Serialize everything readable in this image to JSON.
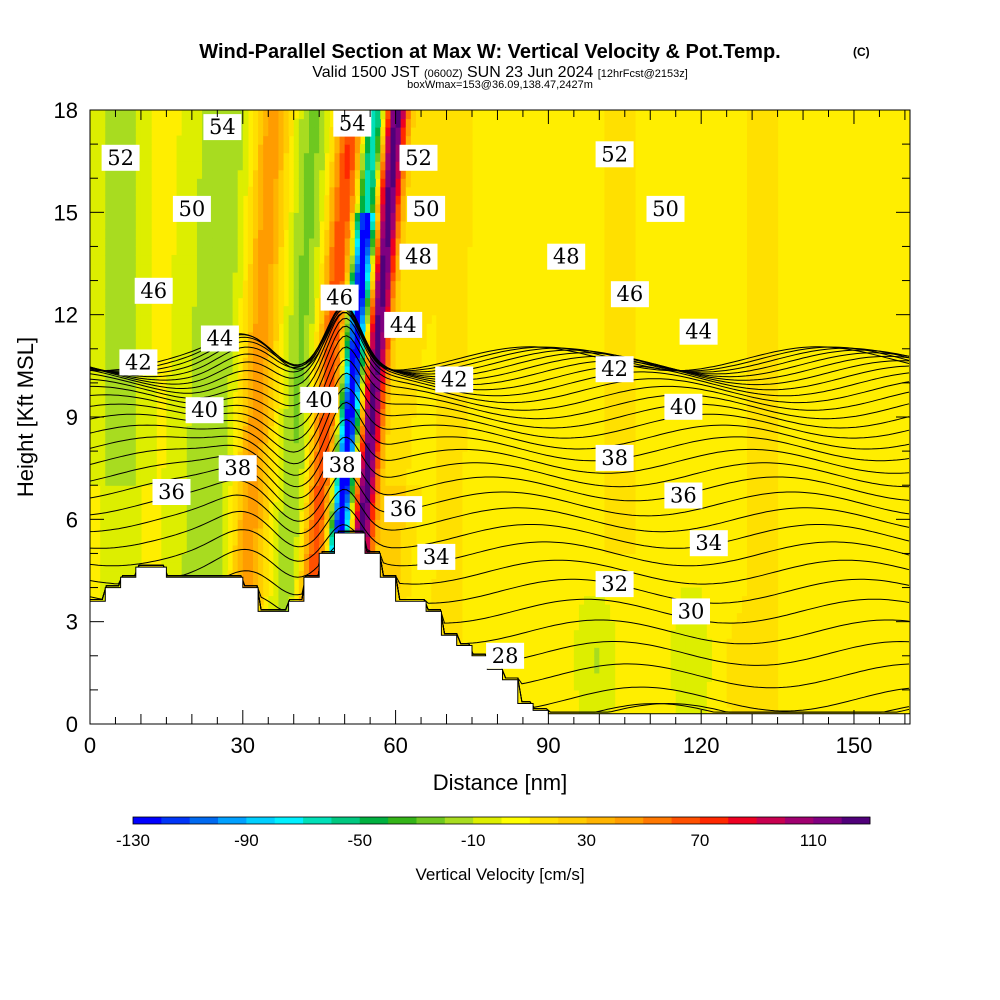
{
  "title": {
    "main": "Wind-Parallel Section at Max W: Vertical Velocity & Pot.Temp.",
    "copyright": "(C)",
    "valid_a": "Valid 1500 JST",
    "valid_z": "(0600Z)",
    "valid_b": "SUN 23 Jun 2024",
    "valid_fcst": "[12hrFcst@2153z]",
    "box": "boxWmax=153@36.09,138.47,2427m"
  },
  "chart_data": {
    "type": "heatmap",
    "title": "Wind-Parallel Section at Max W: Vertical Velocity & Pot.Temp.",
    "xlabel": "Distance [nm]",
    "ylabel": "Height [Kft MSL]",
    "xlim": [
      0,
      161
    ],
    "ylim": [
      0,
      18
    ],
    "x_ticks": [
      "0",
      "30",
      "60",
      "90",
      "120",
      "150"
    ],
    "y_ticks": [
      "0",
      "3",
      "6",
      "9",
      "12",
      "15",
      "18"
    ],
    "colorbar": {
      "label": "Vertical Velocity [cm/s]",
      "tick_labels": [
        "-130",
        "-90",
        "-50",
        "-10",
        "30",
        "70",
        "110"
      ],
      "levels": [
        -130,
        -120,
        -110,
        -100,
        -90,
        -80,
        -70,
        -60,
        -50,
        -40,
        -30,
        -20,
        -10,
        0,
        10,
        20,
        30,
        40,
        50,
        60,
        70,
        80,
        90,
        100,
        110,
        120
      ],
      "colors": [
        "#0000ff",
        "#0035f8",
        "#0069f0",
        "#00a0ff",
        "#00cfff",
        "#00f0ff",
        "#00e0b8",
        "#00c880",
        "#00b040",
        "#34b418",
        "#6ec820",
        "#a8dc20",
        "#ddee00",
        "#ffff00",
        "#ffe000",
        "#ffcc00",
        "#ffb400",
        "#ff9c00",
        "#ff7800",
        "#ff5000",
        "#ff2800",
        "#ee0022",
        "#c80050",
        "#a00070",
        "#800080",
        "#50007a"
      ]
    },
    "terrain": {
      "x": [
        0,
        3,
        6,
        9,
        12,
        15,
        18,
        21,
        24,
        27,
        30,
        33,
        36,
        39,
        42,
        45,
        48,
        51,
        54,
        57,
        60,
        63,
        66,
        69,
        72,
        75,
        78,
        81,
        84,
        87,
        90,
        95,
        100,
        110,
        120,
        130,
        140,
        150,
        161
      ],
      "height": [
        3.6,
        4.0,
        4.3,
        4.6,
        4.6,
        4.3,
        4.3,
        4.3,
        4.3,
        4.3,
        4.0,
        3.3,
        3.3,
        3.6,
        4.3,
        5.0,
        5.6,
        5.6,
        5.0,
        4.3,
        3.6,
        3.6,
        3.3,
        2.6,
        2.3,
        2.0,
        1.6,
        1.3,
        0.6,
        0.4,
        0.3,
        0.3,
        0.3,
        0.3,
        0.3,
        0.3,
        0.3,
        0.3,
        0.3
      ]
    },
    "theta_contours": [
      {
        "label": "52",
        "x": 6,
        "y": 16.6
      },
      {
        "label": "54",
        "x": 26,
        "y": 17.5
      },
      {
        "label": "54",
        "x": 51.5,
        "y": 17.6
      },
      {
        "label": "52",
        "x": 64.5,
        "y": 16.6
      },
      {
        "label": "52",
        "x": 103,
        "y": 16.7
      },
      {
        "label": "50",
        "x": 20,
        "y": 15.1
      },
      {
        "label": "50",
        "x": 66,
        "y": 15.1
      },
      {
        "label": "50",
        "x": 113,
        "y": 15.1
      },
      {
        "label": "48",
        "x": 64.5,
        "y": 13.7
      },
      {
        "label": "48",
        "x": 93.5,
        "y": 13.7
      },
      {
        "label": "46",
        "x": 12.5,
        "y": 12.7
      },
      {
        "label": "46",
        "x": 49,
        "y": 12.5
      },
      {
        "label": "46",
        "x": 106,
        "y": 12.6
      },
      {
        "label": "44",
        "x": 25.5,
        "y": 11.3
      },
      {
        "label": "44",
        "x": 61.5,
        "y": 11.7
      },
      {
        "label": "44",
        "x": 119.5,
        "y": 11.5
      },
      {
        "label": "42",
        "x": 9.5,
        "y": 10.6
      },
      {
        "label": "42",
        "x": 71.5,
        "y": 10.1
      },
      {
        "label": "42",
        "x": 103,
        "y": 10.4
      },
      {
        "label": "40",
        "x": 22.5,
        "y": 9.2
      },
      {
        "label": "40",
        "x": 45,
        "y": 9.5
      },
      {
        "label": "40",
        "x": 116.5,
        "y": 9.3
      },
      {
        "label": "38",
        "x": 29,
        "y": 7.5
      },
      {
        "label": "38",
        "x": 49.5,
        "y": 7.6
      },
      {
        "label": "38",
        "x": 103,
        "y": 7.8
      },
      {
        "label": "36",
        "x": 16,
        "y": 6.8
      },
      {
        "label": "36",
        "x": 61.5,
        "y": 6.3
      },
      {
        "label": "36",
        "x": 116.5,
        "y": 6.7
      },
      {
        "label": "34",
        "x": 68,
        "y": 4.9
      },
      {
        "label": "34",
        "x": 121.5,
        "y": 5.3
      },
      {
        "label": "32",
        "x": 103,
        "y": 4.1
      },
      {
        "label": "30",
        "x": 118,
        "y": 3.3
      },
      {
        "label": "28",
        "x": 81.5,
        "y": 2.0
      }
    ],
    "max_w": {
      "value": 153,
      "x": 51.5
    }
  }
}
